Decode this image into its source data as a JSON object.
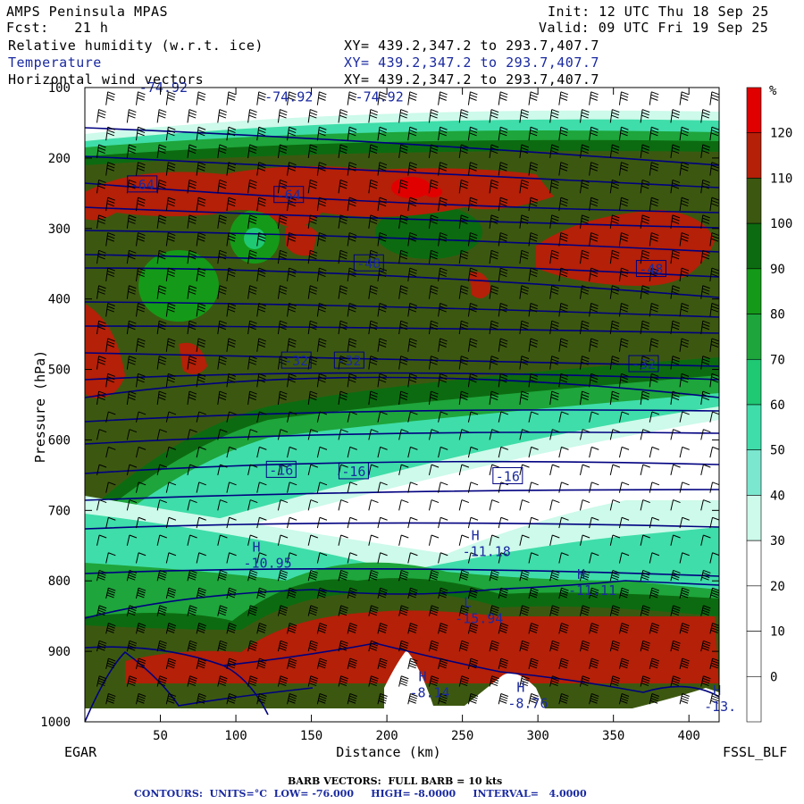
{
  "header": {
    "model": "AMPS Peninsula MPAS",
    "forecast": "Fcst:   21 h",
    "init": "Init: 12 UTC Thu 18 Sep 25",
    "valid": "Valid: 09 UTC Fri 19 Sep 25",
    "field1": "Relative humidity (w.r.t. ice)",
    "field2": "Temperature",
    "field3": "Horizontal wind vectors",
    "xy": "XY= 439.2,347.2 to 293.7,407.7"
  },
  "footer": {
    "left_label": "EGAR",
    "right_label": "FSSL_BLF",
    "barb_note": "BARB VECTORS:  FULL BARB = 10 kts",
    "contour_note": "CONTOURS:  UNITS=°C  LOW= -76.000     HIGH= -8.0000     INTERVAL=   4.0000"
  },
  "colors": {
    "white": "#ffffff",
    "c30": "#cdfaea",
    "c40": "#7be7cf",
    "c50": "#3fdda9",
    "c60": "#1fc873",
    "c70": "#1ea53b",
    "c80": "#149a18",
    "c90": "#0c6b10",
    "c100": "#3c5810",
    "c110": "#b42008",
    "c120": "#e00000",
    "contour": "#000080",
    "text_blue": "#1a2aa0"
  },
  "chart_data": {
    "type": "cross-section",
    "xlabel": "Distance (km)",
    "ylabel": "Pressure (hPa)",
    "xlim": [
      0,
      420
    ],
    "ylim": [
      1000,
      100
    ],
    "xticks": [
      50,
      100,
      150,
      200,
      250,
      300,
      350,
      400
    ],
    "yticks": [
      100,
      200,
      300,
      400,
      500,
      600,
      700,
      800,
      900,
      1000
    ],
    "colorbar": {
      "unit": "%",
      "labels": [
        120,
        110,
        100,
        90,
        80,
        70,
        60,
        50,
        40,
        30,
        20,
        10,
        0
      ],
      "colors": [
        "#e00000",
        "#b42008",
        "#3c5810",
        "#0c6b10",
        "#149a18",
        "#1ea53b",
        "#1fc873",
        "#3fdda9",
        "#7be7cf",
        "#cdfaea",
        "#ffffff",
        "#ffffff",
        "#ffffff",
        "#ffffff"
      ]
    },
    "isotherm_labels": [
      {
        "text": "-74.92",
        "x": 52,
        "p": 100
      },
      {
        "text": "-74.92",
        "x": 135,
        "p": 113
      },
      {
        "text": "-74.92",
        "x": 195,
        "p": 113
      },
      {
        "text": "-64",
        "x": 38,
        "p": 238
      },
      {
        "text": "-64",
        "x": 135,
        "p": 253
      },
      {
        "text": "-48",
        "x": 188,
        "p": 350
      },
      {
        "text": "-48",
        "x": 375,
        "p": 358
      },
      {
        "text": "-32",
        "x": 140,
        "p": 488
      },
      {
        "text": "-32",
        "x": 175,
        "p": 488
      },
      {
        "text": "-32",
        "x": 370,
        "p": 493
      },
      {
        "text": "-16",
        "x": 130,
        "p": 643
      },
      {
        "text": "-16",
        "x": 178,
        "p": 645
      },
      {
        "text": "-16",
        "x": 280,
        "p": 652
      }
    ],
    "extrema": [
      {
        "type": "H",
        "value": "-10.95",
        "x": 105,
        "p": 776
      },
      {
        "type": "H",
        "value": "-11.18",
        "x": 250,
        "p": 760
      },
      {
        "type": "H",
        "value": "-11.11",
        "x": 320,
        "p": 815
      },
      {
        "type": "L",
        "value": "-15.94",
        "x": 245,
        "p": 855
      },
      {
        "type": "H",
        "value": "-8.14",
        "x": 215,
        "p": 960
      },
      {
        "type": "H",
        "value": "-8.76",
        "x": 280,
        "p": 975
      },
      {
        "type": "H",
        "value": "-13.",
        "x": 410,
        "p": 980
      }
    ],
    "terrain_note": "Surface elevation rises to ~930 hPa near 210 km"
  }
}
